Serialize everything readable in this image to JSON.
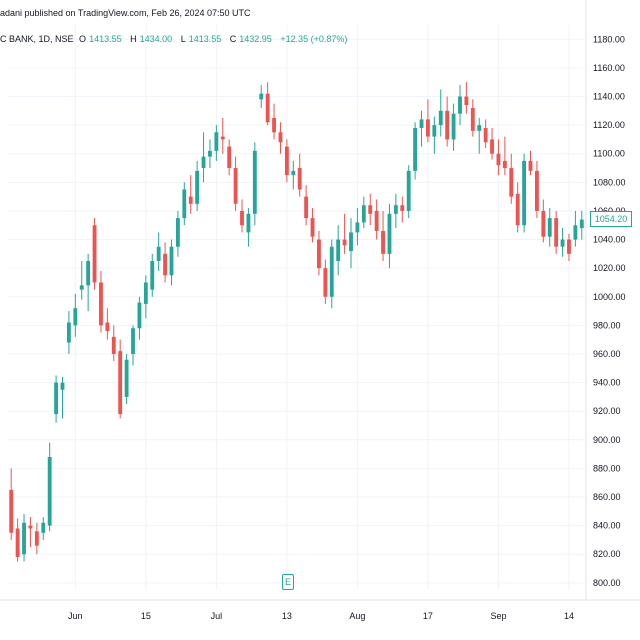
{
  "header": {
    "publisher_text": "adani published on TradingView.com, Feb 26, 2024 07:50 UTC",
    "symbol_text": "C BANK, 1D, NSE",
    "open_label": "O",
    "open_value": "1413.55",
    "high_label": "H",
    "high_value": "1434.00",
    "low_label": "L",
    "low_value": "1413.55",
    "close_label": "C",
    "close_value": "1432.95",
    "change_text": "+12.35 (+0.87%)"
  },
  "colors": {
    "up": "#26a69a",
    "down": "#ef5350",
    "grid": "#f0f3fa",
    "text": "#131722"
  },
  "icons": {
    "event": "earnings-icon"
  },
  "event_glyph": "E",
  "chart_data": {
    "type": "candlestick",
    "title": "",
    "xlabel": "",
    "ylabel": "",
    "ylim": [
      795,
      1190
    ],
    "price_ticks": [
      "1180.00",
      "1160.00",
      "1140.00",
      "1120.00",
      "1100.00",
      "1080.00",
      "1060.00",
      "1040.00",
      "1020.00",
      "1000.00",
      "980.00",
      "960.00",
      "940.00",
      "920.00",
      "900.00",
      "880.00",
      "860.00",
      "840.00",
      "820.00",
      "800.00"
    ],
    "time_ticks": [
      "Jun",
      "15",
      "Jul",
      "13",
      "Aug",
      "17",
      "Sep",
      "14"
    ],
    "time_tick_index": [
      10,
      21,
      32,
      43,
      54,
      65,
      76,
      87
    ],
    "last_price": "1054.20",
    "grid": true,
    "candles": [
      {
        "o": 865,
        "h": 880,
        "l": 830,
        "c": 835
      },
      {
        "o": 838,
        "h": 845,
        "l": 815,
        "c": 818
      },
      {
        "o": 820,
        "h": 848,
        "l": 815,
        "c": 842
      },
      {
        "o": 840,
        "h": 846,
        "l": 825,
        "c": 838
      },
      {
        "o": 836,
        "h": 842,
        "l": 820,
        "c": 826
      },
      {
        "o": 835,
        "h": 846,
        "l": 830,
        "c": 842
      },
      {
        "o": 840,
        "h": 898,
        "l": 836,
        "c": 888
      },
      {
        "o": 918,
        "h": 945,
        "l": 912,
        "c": 940
      },
      {
        "o": 935,
        "h": 944,
        "l": 915,
        "c": 940
      },
      {
        "o": 968,
        "h": 990,
        "l": 960,
        "c": 982
      },
      {
        "o": 980,
        "h": 1002,
        "l": 972,
        "c": 992
      },
      {
        "o": 1005,
        "h": 1025,
        "l": 998,
        "c": 1008
      },
      {
        "o": 1008,
        "h": 1030,
        "l": 990,
        "c": 1025
      },
      {
        "o": 1050,
        "h": 1055,
        "l": 1005,
        "c": 1010
      },
      {
        "o": 1010,
        "h": 1018,
        "l": 975,
        "c": 980
      },
      {
        "o": 982,
        "h": 992,
        "l": 970,
        "c": 976
      },
      {
        "o": 972,
        "h": 980,
        "l": 955,
        "c": 960
      },
      {
        "o": 962,
        "h": 970,
        "l": 915,
        "c": 918
      },
      {
        "o": 930,
        "h": 960,
        "l": 925,
        "c": 956
      },
      {
        "o": 960,
        "h": 980,
        "l": 952,
        "c": 978
      },
      {
        "o": 978,
        "h": 1000,
        "l": 970,
        "c": 996
      },
      {
        "o": 995,
        "h": 1015,
        "l": 985,
        "c": 1010
      },
      {
        "o": 1005,
        "h": 1030,
        "l": 1000,
        "c": 1025
      },
      {
        "o": 1025,
        "h": 1045,
        "l": 1018,
        "c": 1035
      },
      {
        "o": 1030,
        "h": 1038,
        "l": 1010,
        "c": 1015
      },
      {
        "o": 1015,
        "h": 1040,
        "l": 1008,
        "c": 1035
      },
      {
        "o": 1035,
        "h": 1060,
        "l": 1028,
        "c": 1055
      },
      {
        "o": 1055,
        "h": 1080,
        "l": 1050,
        "c": 1075
      },
      {
        "o": 1070,
        "h": 1085,
        "l": 1058,
        "c": 1065
      },
      {
        "o": 1065,
        "h": 1095,
        "l": 1060,
        "c": 1088
      },
      {
        "o": 1090,
        "h": 1115,
        "l": 1080,
        "c": 1098
      },
      {
        "o": 1098,
        "h": 1110,
        "l": 1090,
        "c": 1102
      },
      {
        "o": 1102,
        "h": 1120,
        "l": 1095,
        "c": 1115
      },
      {
        "o": 1112,
        "h": 1125,
        "l": 1100,
        "c": 1110
      },
      {
        "o": 1105,
        "h": 1110,
        "l": 1085,
        "c": 1090
      },
      {
        "o": 1090,
        "h": 1098,
        "l": 1060,
        "c": 1065
      },
      {
        "o": 1060,
        "h": 1068,
        "l": 1045,
        "c": 1050
      },
      {
        "o": 1045,
        "h": 1062,
        "l": 1035,
        "c": 1058
      },
      {
        "o": 1058,
        "h": 1108,
        "l": 1050,
        "c": 1102
      },
      {
        "o": 1138,
        "h": 1148,
        "l": 1132,
        "c": 1142
      },
      {
        "o": 1142,
        "h": 1150,
        "l": 1120,
        "c": 1122
      },
      {
        "o": 1125,
        "h": 1135,
        "l": 1110,
        "c": 1115
      },
      {
        "o": 1115,
        "h": 1122,
        "l": 1100,
        "c": 1108
      },
      {
        "o": 1105,
        "h": 1110,
        "l": 1080,
        "c": 1085
      },
      {
        "o": 1085,
        "h": 1095,
        "l": 1075,
        "c": 1088
      },
      {
        "o": 1090,
        "h": 1100,
        "l": 1070,
        "c": 1075
      },
      {
        "o": 1070,
        "h": 1078,
        "l": 1050,
        "c": 1055
      },
      {
        "o": 1055,
        "h": 1062,
        "l": 1038,
        "c": 1042
      },
      {
        "o": 1040,
        "h": 1046,
        "l": 1015,
        "c": 1020
      },
      {
        "o": 1020,
        "h": 1026,
        "l": 995,
        "c": 1000
      },
      {
        "o": 1000,
        "h": 1040,
        "l": 992,
        "c": 1035
      },
      {
        "o": 1025,
        "h": 1050,
        "l": 1015,
        "c": 1040
      },
      {
        "o": 1040,
        "h": 1058,
        "l": 1030,
        "c": 1036
      },
      {
        "o": 1032,
        "h": 1055,
        "l": 1020,
        "c": 1045
      },
      {
        "o": 1045,
        "h": 1062,
        "l": 1036,
        "c": 1052
      },
      {
        "o": 1052,
        "h": 1070,
        "l": 1048,
        "c": 1064
      },
      {
        "o": 1064,
        "h": 1072,
        "l": 1050,
        "c": 1058
      },
      {
        "o": 1060,
        "h": 1068,
        "l": 1040,
        "c": 1046
      },
      {
        "o": 1046,
        "h": 1060,
        "l": 1025,
        "c": 1030
      },
      {
        "o": 1030,
        "h": 1065,
        "l": 1020,
        "c": 1058
      },
      {
        "o": 1058,
        "h": 1072,
        "l": 1048,
        "c": 1064
      },
      {
        "o": 1064,
        "h": 1070,
        "l": 1052,
        "c": 1060
      },
      {
        "o": 1060,
        "h": 1092,
        "l": 1055,
        "c": 1088
      },
      {
        "o": 1088,
        "h": 1122,
        "l": 1082,
        "c": 1118
      },
      {
        "o": 1118,
        "h": 1130,
        "l": 1105,
        "c": 1124
      },
      {
        "o": 1124,
        "h": 1138,
        "l": 1108,
        "c": 1112
      },
      {
        "o": 1112,
        "h": 1126,
        "l": 1100,
        "c": 1120
      },
      {
        "o": 1120,
        "h": 1145,
        "l": 1112,
        "c": 1130
      },
      {
        "o": 1130,
        "h": 1140,
        "l": 1105,
        "c": 1110
      },
      {
        "o": 1110,
        "h": 1135,
        "l": 1102,
        "c": 1128
      },
      {
        "o": 1128,
        "h": 1148,
        "l": 1120,
        "c": 1140
      },
      {
        "o": 1140,
        "h": 1150,
        "l": 1128,
        "c": 1134
      },
      {
        "o": 1132,
        "h": 1138,
        "l": 1112,
        "c": 1116
      },
      {
        "o": 1116,
        "h": 1125,
        "l": 1100,
        "c": 1120
      },
      {
        "o": 1118,
        "h": 1124,
        "l": 1104,
        "c": 1108
      },
      {
        "o": 1110,
        "h": 1118,
        "l": 1096,
        "c": 1100
      },
      {
        "o": 1100,
        "h": 1110,
        "l": 1085,
        "c": 1092
      },
      {
        "o": 1095,
        "h": 1112,
        "l": 1085,
        "c": 1090
      },
      {
        "o": 1090,
        "h": 1100,
        "l": 1065,
        "c": 1070
      },
      {
        "o": 1072,
        "h": 1080,
        "l": 1045,
        "c": 1050
      },
      {
        "o": 1050,
        "h": 1100,
        "l": 1045,
        "c": 1095
      },
      {
        "o": 1095,
        "h": 1102,
        "l": 1085,
        "c": 1088
      },
      {
        "o": 1088,
        "h": 1095,
        "l": 1055,
        "c": 1060
      },
      {
        "o": 1060,
        "h": 1068,
        "l": 1038,
        "c": 1042
      },
      {
        "o": 1042,
        "h": 1062,
        "l": 1035,
        "c": 1055
      },
      {
        "o": 1055,
        "h": 1060,
        "l": 1030,
        "c": 1035
      },
      {
        "o": 1035,
        "h": 1048,
        "l": 1028,
        "c": 1040
      },
      {
        "o": 1040,
        "h": 1044,
        "l": 1025,
        "c": 1030
      },
      {
        "o": 1040,
        "h": 1060,
        "l": 1035,
        "c": 1050
      },
      {
        "o": 1048,
        "h": 1060,
        "l": 1040,
        "c": 1054
      }
    ]
  }
}
